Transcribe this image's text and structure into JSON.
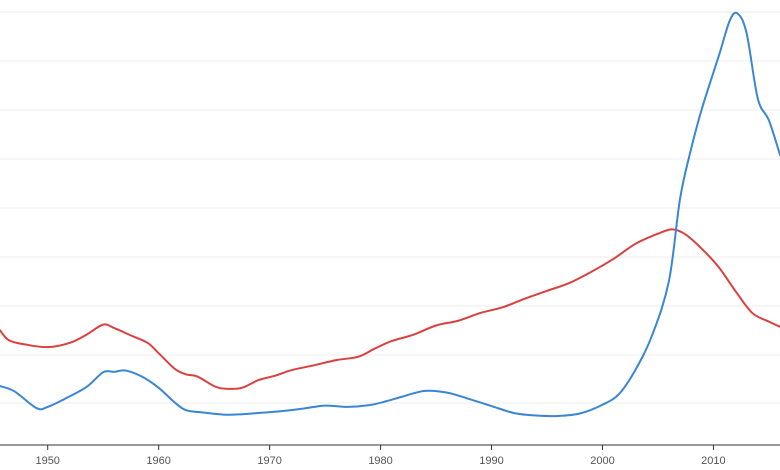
{
  "chart_data": {
    "type": "line",
    "title": "",
    "xlabel": "",
    "ylabel": "",
    "xlim": [
      1945.7,
      2016.0
    ],
    "ylim": [
      0,
      100
    ],
    "grid": true,
    "legend": "none",
    "x_ticks": [
      1950,
      1960,
      1970,
      1980,
      1990,
      2000,
      2010
    ],
    "series": [
      {
        "color": "#d9403f",
        "points": [
          [
            1945.7,
            26.5
          ],
          [
            1946.5,
            24.2
          ],
          [
            1948,
            23.2
          ],
          [
            1950,
            22.6
          ],
          [
            1952,
            23.6
          ],
          [
            1953.5,
            25.5
          ],
          [
            1955,
            27.8
          ],
          [
            1956,
            27.0
          ],
          [
            1957.5,
            25.3
          ],
          [
            1959,
            23.6
          ],
          [
            1960,
            21.2
          ],
          [
            1961.5,
            17.5
          ],
          [
            1962.5,
            16.3
          ],
          [
            1963.5,
            15.8
          ],
          [
            1965,
            13.6
          ],
          [
            1966,
            13.0
          ],
          [
            1967.5,
            13.2
          ],
          [
            1969,
            15.0
          ],
          [
            1970.5,
            16.0
          ],
          [
            1972,
            17.3
          ],
          [
            1974,
            18.4
          ],
          [
            1976,
            19.6
          ],
          [
            1978,
            20.4
          ],
          [
            1979.5,
            22.3
          ],
          [
            1981,
            24.0
          ],
          [
            1983,
            25.5
          ],
          [
            1985,
            27.6
          ],
          [
            1987,
            28.7
          ],
          [
            1989,
            30.5
          ],
          [
            1991,
            31.8
          ],
          [
            1993,
            33.8
          ],
          [
            1995,
            35.6
          ],
          [
            1997,
            37.4
          ],
          [
            1999,
            40.0
          ],
          [
            2001,
            43.0
          ],
          [
            2003,
            46.5
          ],
          [
            2005,
            48.8
          ],
          [
            2006.3,
            49.8
          ],
          [
            2007.5,
            48.6
          ],
          [
            2009,
            45.2
          ],
          [
            2010.5,
            41.0
          ],
          [
            2012,
            35.5
          ],
          [
            2013.5,
            30.5
          ],
          [
            2015,
            28.5
          ],
          [
            2016,
            27.3
          ]
        ]
      },
      {
        "color": "#3a86d4",
        "points": [
          [
            1945.7,
            13.6
          ],
          [
            1947,
            12.4
          ],
          [
            1949,
            8.5
          ],
          [
            1950,
            8.8
          ],
          [
            1951.5,
            10.6
          ],
          [
            1953.5,
            13.4
          ],
          [
            1955,
            16.8
          ],
          [
            1956,
            16.9
          ],
          [
            1957,
            17.2
          ],
          [
            1958.5,
            15.8
          ],
          [
            1960,
            13.2
          ],
          [
            1961.5,
            9.7
          ],
          [
            1962.5,
            8.0
          ],
          [
            1964,
            7.5
          ],
          [
            1966,
            7.0
          ],
          [
            1967.5,
            7.1
          ],
          [
            1969,
            7.4
          ],
          [
            1971,
            7.8
          ],
          [
            1973,
            8.4
          ],
          [
            1975,
            9.1
          ],
          [
            1977,
            8.8
          ],
          [
            1979,
            9.2
          ],
          [
            1980.5,
            10.1
          ],
          [
            1982,
            11.2
          ],
          [
            1984,
            12.5
          ],
          [
            1986,
            12.1
          ],
          [
            1988,
            10.6
          ],
          [
            1990,
            9.0
          ],
          [
            1992,
            7.4
          ],
          [
            1994,
            6.8
          ],
          [
            1996,
            6.7
          ],
          [
            1998,
            7.3
          ],
          [
            2000,
            9.3
          ],
          [
            2001.5,
            11.8
          ],
          [
            2003,
            17.5
          ],
          [
            2004.5,
            25.5
          ],
          [
            2006,
            38.0
          ],
          [
            2007,
            57.0
          ],
          [
            2008,
            68.5
          ],
          [
            2009,
            78.0
          ],
          [
            2010.5,
            90.0
          ],
          [
            2011.5,
            98.2
          ],
          [
            2012.2,
            99.6
          ],
          [
            2013,
            95.0
          ],
          [
            2014,
            80.0
          ],
          [
            2015,
            75.0
          ],
          [
            2016,
            67.0
          ]
        ]
      }
    ]
  }
}
